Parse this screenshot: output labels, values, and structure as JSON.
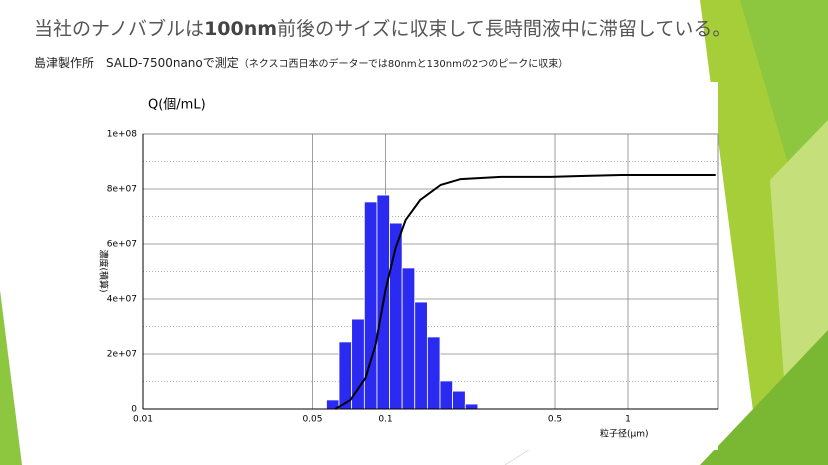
{
  "slide": {
    "title": [
      "当社のナノバブルは",
      "100nm",
      "前後のサイズに収束して長時間液中に滞留している。"
    ],
    "subtitle": [
      "島津製作所　SALD-7500nanoで測定",
      "（ネクスコ西日本のデーターでは80nmと130nmの2つのピークに収束）"
    ]
  },
  "chart_data": {
    "type": "histogram",
    "y_label": "Q(個/mL)",
    "y_axis_title": "濃度(積算)",
    "x_label": "粒子径(μm)",
    "bins": [
      0.0571,
      0.0643,
      0.0725,
      0.0818,
      0.0922,
      0.1039,
      0.1171,
      0.132,
      0.1488,
      0.1678,
      0.1891,
      0.2133,
      0.2404
    ],
    "values": [
      3300000,
      24400000,
      32700000,
      75300000,
      77800000,
      67600000,
      51300000,
      38900000,
      26200000,
      10200000,
      6500000,
      1800000
    ],
    "color": "#2a2af0",
    "line": {
      "color": "#000000",
      "x": [
        0.0621,
        0.0717,
        0.0827,
        0.091,
        0.1,
        0.11,
        0.121,
        0.139,
        0.169,
        0.204,
        0.299,
        0.481,
        0.61,
        0.936,
        2.3
      ],
      "values": [
        0,
        3300000,
        11300000,
        23300000,
        43300000,
        58500000,
        68700000,
        76000000,
        81500000,
        83600000,
        84400000,
        84400000,
        84700000,
        85100000,
        85100000
      ]
    },
    "xscale": "log",
    "xlim": [
      0.01,
      2.35
    ],
    "xticks": [
      0.01,
      0.05,
      0.1,
      0.5,
      1
    ],
    "ylim": [
      0,
      100000000
    ],
    "yticks": [
      0,
      {
        "value": 20000000,
        "label": "2e+07"
      },
      {
        "value": 40000000,
        "label": "4e+07"
      },
      {
        "value": 60000000,
        "label": "6e+07"
      },
      {
        "value": 80000000,
        "label": "8e+07"
      },
      {
        "value": 100000000,
        "label": "1e+08"
      }
    ],
    "grid": true
  }
}
